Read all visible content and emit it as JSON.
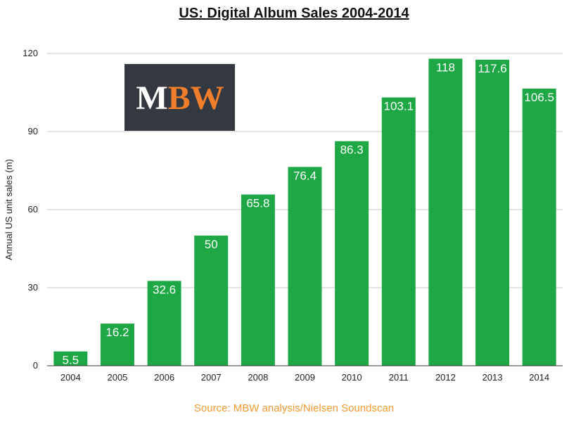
{
  "chart_data": {
    "type": "bar",
    "title": "US: Digital Album Sales 2004-2014",
    "ylabel": "Annual US unit sales (m)",
    "xlabel": "",
    "categories": [
      "2004",
      "2005",
      "2006",
      "2007",
      "2008",
      "2009",
      "2010",
      "2011",
      "2012",
      "2013",
      "2014"
    ],
    "values": [
      5.5,
      16.2,
      32.6,
      50,
      65.8,
      76.4,
      86.3,
      103.1,
      118,
      117.6,
      106.5
    ],
    "value_labels": [
      "5.5",
      "16.2",
      "32.6",
      "50",
      "65.8",
      "76.4",
      "86.3",
      "103.1",
      "118",
      "117.6",
      "106.5"
    ],
    "ylim": [
      0,
      120
    ],
    "yticks": [
      0,
      30,
      60,
      90,
      120
    ],
    "grid": true,
    "legend": "none",
    "bar_color": "#1ea845",
    "label_color": "#ffffff"
  },
  "source": "Source: MBW analysis/Nielsen Soundscan",
  "logo": {
    "letters": [
      "M",
      "BW"
    ],
    "colors": [
      "#ffffff",
      "#f07e2b"
    ],
    "background": "#343840"
  }
}
